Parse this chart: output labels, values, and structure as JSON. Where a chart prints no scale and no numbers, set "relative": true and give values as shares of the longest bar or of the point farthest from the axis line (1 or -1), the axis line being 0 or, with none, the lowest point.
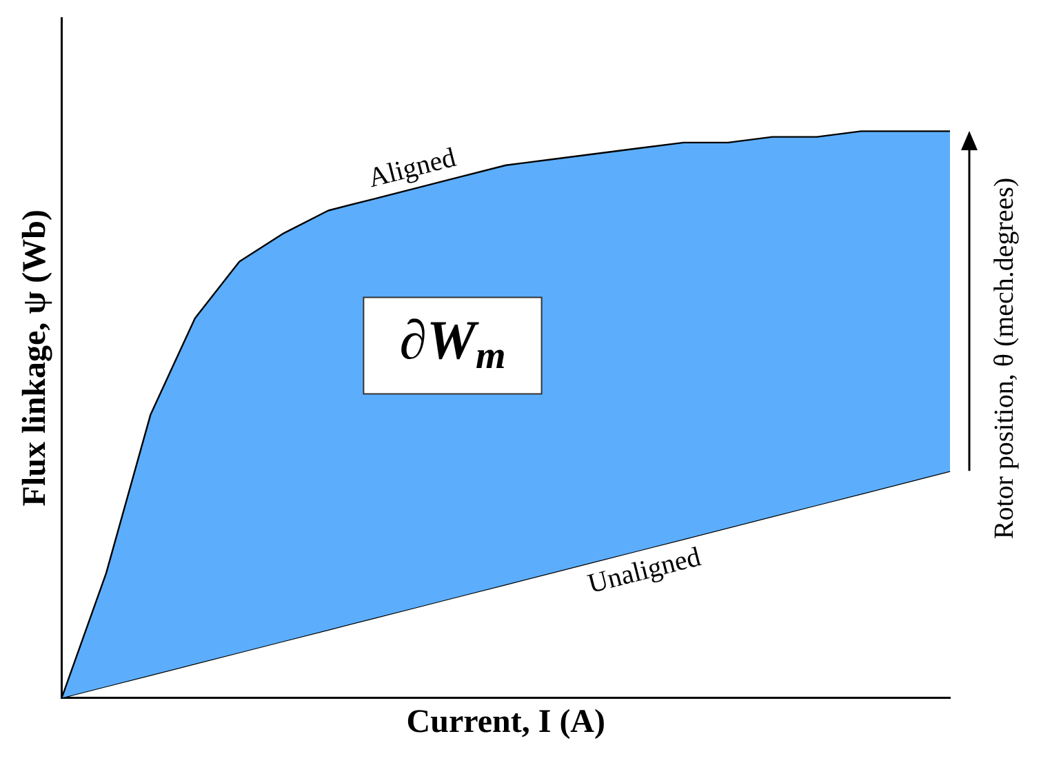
{
  "chart_data": {
    "type": "line",
    "relative": true,
    "xlabel": "Current, I (A)",
    "ylabel": "Flux linkage, ψ (Wb)",
    "y2label": "Rotor position, θ (mech.degrees)",
    "annotations": [
      "∂W$_{m}$"
    ],
    "grid": false,
    "legend": false,
    "marker": "none",
    "categories": [
      null,
      null,
      null,
      null,
      null,
      null,
      null,
      null,
      null,
      null,
      null,
      null,
      null,
      null,
      null,
      null,
      null,
      null,
      null,
      null,
      null
    ],
    "series": [
      {
        "name": "Aligned",
        "type": "area",
        "color": "#5caefc",
        "values": [
          0,
          0.22,
          0.5,
          0.67,
          0.77,
          0.82,
          0.86,
          0.88,
          0.9,
          0.92,
          0.94,
          0.95,
          0.96,
          0.97,
          0.98,
          0.98,
          0.99,
          0.99,
          1,
          1,
          1
        ]
      },
      {
        "name": "Unaligned",
        "type": "line",
        "color": "#000000",
        "values": [
          0,
          0.02,
          0.04,
          0.06,
          0.08,
          0.1,
          0.12,
          0.14,
          0.16,
          0.18,
          0.2,
          0.22,
          0.24,
          0.26,
          0.28,
          0.3,
          0.32,
          0.34,
          0.36,
          0.38,
          0.4
        ]
      }
    ]
  }
}
